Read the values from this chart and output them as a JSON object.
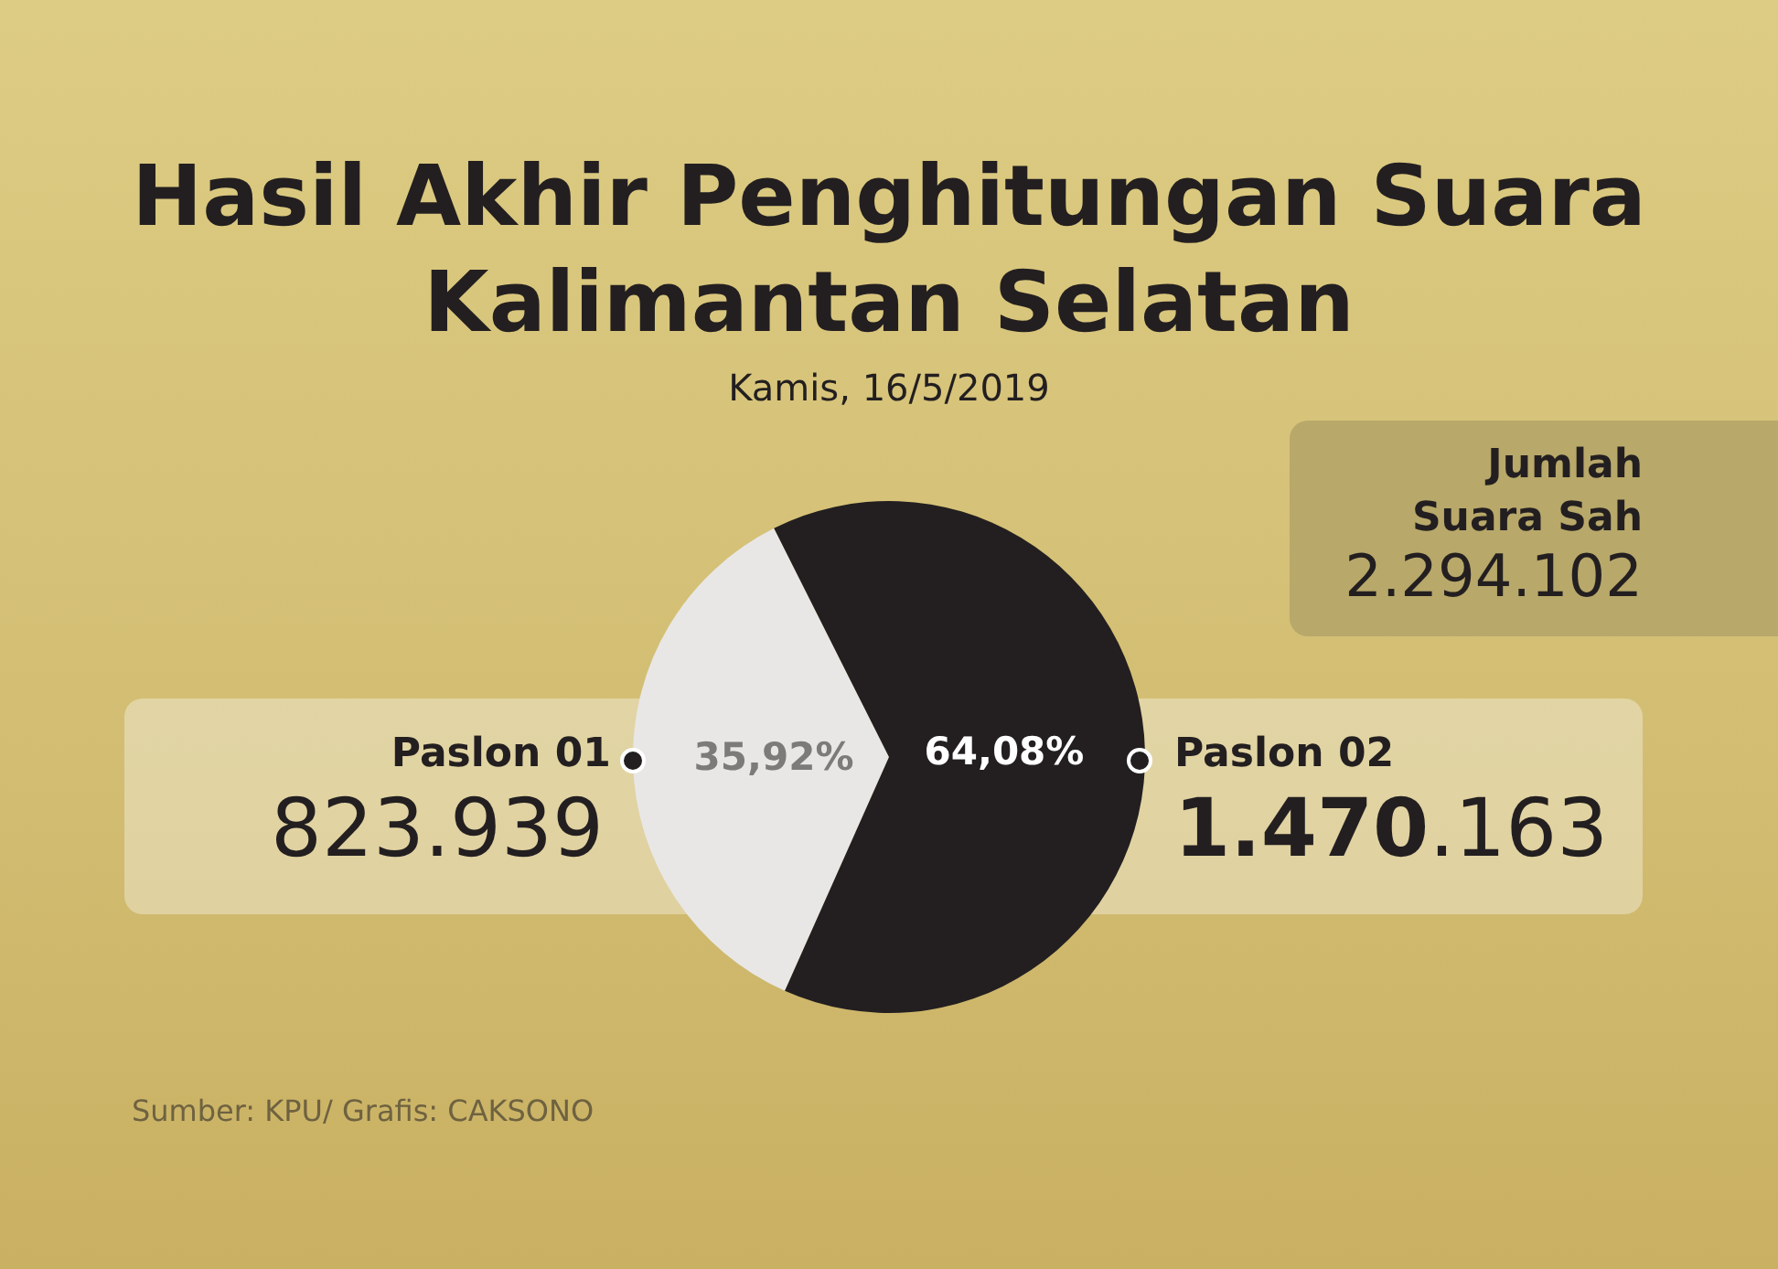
{
  "chart_data": {
    "type": "pie",
    "title": "Hasil Akhir Penghitungan Suara\nKalimantan Selatan",
    "subtitle": "Kamis, 16/5/2019",
    "categories": [
      "Paslon 01",
      "Paslon 02"
    ],
    "values": [
      35.92,
      64.08
    ],
    "colors": [
      "#e8e7e6",
      "#231f20"
    ],
    "value_labels": [
      "35,92%",
      "64,08%"
    ],
    "annotations": [
      "823.939",
      "1.470.163",
      "Jumlah\nSuara Sah",
      "2.294.102",
      "Sumber: KPU/ Grafis: CAKSONO"
    ]
  }
}
